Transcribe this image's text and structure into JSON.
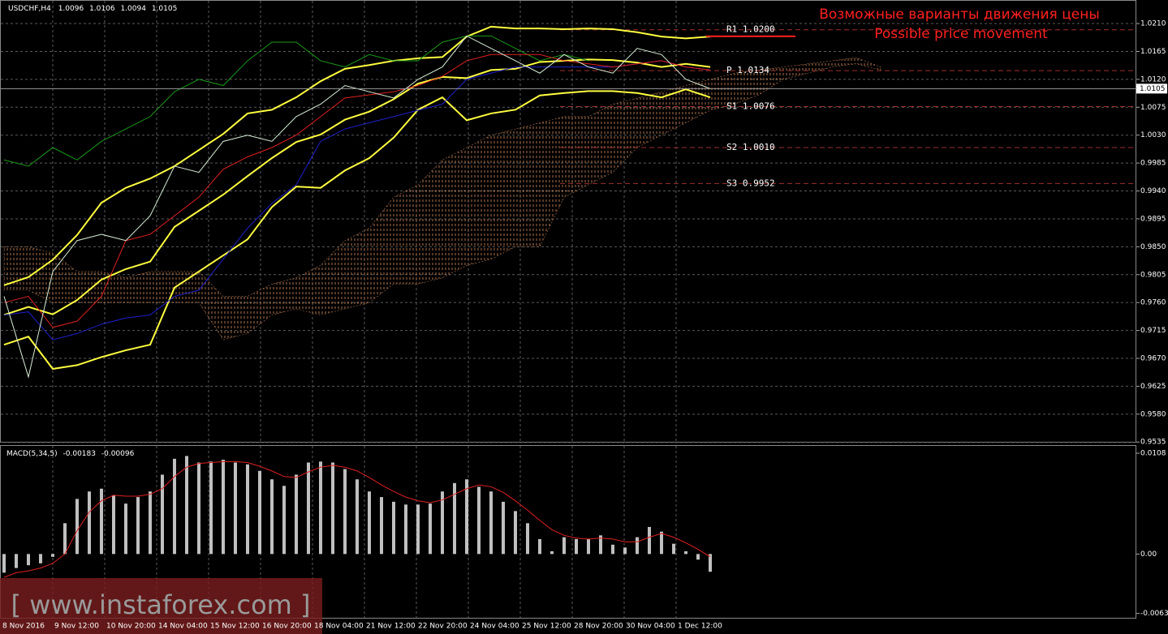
{
  "chart_data": [
    {
      "type": "line",
      "title": "USDCHF,H4",
      "ohlc": [
        1.0096,
        1.0106,
        1.0094,
        1.0105
      ],
      "annotations": [
        "Возможные варианты движения цены",
        "Possible price movement"
      ],
      "watermark": "[ www.instaforex.com ]",
      "ylim": [
        0.9534,
        1.0248
      ],
      "yticks": [
        {
          "value": 1.021,
          "label": "1.0210"
        },
        1.0165,
        {
          "value": 1.012,
          "label": "1.0120"
        },
        1.0075,
        {
          "value": 1.003,
          "label": "1.0030"
        },
        0.9985,
        {
          "value": 0.994,
          "label": "0.9940"
        },
        0.9895,
        {
          "value": 0.985,
          "label": "0.9850"
        },
        0.9805,
        {
          "value": 0.976,
          "label": "0.9760"
        },
        0.9715,
        {
          "value": 0.967,
          "label": "0.9670"
        },
        0.9625,
        {
          "value": 0.958,
          "label": "0.9580"
        },
        0.9535
      ],
      "current_price": 1.0105,
      "grid": true,
      "x_labels": [
        "8 Nov 2016",
        "9 Nov 12:00",
        "10 Nov 20:00",
        "14 Nov 04:00",
        "15 Nov 12:00",
        "16 Nov 20:00",
        "18 Nov 04:00",
        "21 Nov 12:00",
        "22 Nov 20:00",
        "24 Nov 04:00",
        "25 Nov 12:00",
        "28 Nov 20:00",
        "30 Nov 04:00",
        "1 Dec 12:00"
      ],
      "levels": [
        {
          "label": "R1 1.0200",
          "value": 1.02
        },
        {
          "label": "P 1.0134",
          "value": 1.0134
        },
        {
          "label": "S1 1.0076",
          "value": 1.0076
        },
        {
          "label": "S2 1.0010",
          "value": 1.001
        },
        {
          "label": "S3 0.9952",
          "value": 0.9952
        }
      ],
      "cloud": {
        "color": "#c8865a",
        "upper": [
          0.985,
          0.985,
          0.984,
          0.981,
          0.981,
          0.98,
          0.981,
          0.981,
          0.981,
          0.977,
          0.977,
          0.979,
          0.98,
          0.982,
          0.986,
          0.988,
          0.993,
          0.995,
          0.999,
          1.001,
          1.003,
          1.004,
          1.005,
          1.006,
          1.006,
          1.008,
          1.009,
          1.01,
          1.011,
          1.012,
          1.013,
          1.0135,
          1.014,
          1.0145,
          1.015,
          1.0155,
          1.014
        ],
        "lower": [
          0.978,
          0.978,
          0.976,
          0.976,
          0.976,
          0.976,
          0.976,
          0.976,
          0.976,
          0.97,
          0.971,
          0.974,
          0.975,
          0.974,
          0.975,
          0.976,
          0.979,
          0.979,
          0.98,
          0.982,
          0.983,
          0.985,
          0.985,
          0.993,
          0.995,
          0.997,
          1.001,
          1.003,
          1.005,
          1.007,
          1.008,
          1.0095,
          1.012,
          1.013,
          1.014,
          1.0145,
          1.0135
        ]
      },
      "series": [
        {
          "color": "#ffff40",
          "values": [
            0.9788,
            0.9801,
            0.9829,
            0.9869,
            0.9921,
            0.9945,
            0.996,
            0.998,
            1.0006,
            1.0032,
            1.0065,
            1.0071,
            1.0091,
            1.0117,
            1.0137,
            1.0143,
            1.015,
            1.0154,
            1.0156,
            1.0189,
            1.0205,
            1.0202,
            1.0202,
            1.0201,
            1.0202,
            1.0201,
            1.0196,
            1.0189,
            1.0186,
            1.0189
          ]
        },
        {
          "color": "#ffff40",
          "values": [
            0.974,
            0.9753,
            0.9741,
            0.9764,
            0.9797,
            0.9814,
            0.9826,
            0.9882,
            0.9908,
            0.9934,
            0.9964,
            0.9993,
            1.0019,
            1.0031,
            1.0055,
            1.0068,
            1.0088,
            1.0113,
            1.0124,
            1.0122,
            1.0135,
            1.0137,
            1.0148,
            1.015,
            1.0152,
            1.0151,
            1.0147,
            1.014,
            1.0145,
            1.014
          ]
        },
        {
          "color": "#ffff40",
          "values": [
            0.9692,
            0.9705,
            0.9653,
            0.9659,
            0.9672,
            0.9683,
            0.9692,
            0.9784,
            0.981,
            0.9836,
            0.9862,
            0.9914,
            0.9947,
            0.9945,
            0.9973,
            0.9993,
            1.0026,
            1.0071,
            1.0091,
            1.0054,
            1.0065,
            1.0071,
            1.0094,
            1.0098,
            1.0101,
            1.0101,
            1.0098,
            1.0091,
            1.0104,
            1.0091
          ]
        },
        {
          "color": "#1a9a1a",
          "values": [
            0.999,
            0.998,
            1.001,
            0.999,
            1.002,
            1.004,
            1.006,
            1.01,
            1.012,
            1.011,
            1.015,
            1.018,
            1.018,
            1.015,
            1.014,
            1.016,
            1.015,
            1.015,
            1.018,
            1.019,
            1.019,
            1.017,
            1.015,
            1.016,
            1.015,
            null,
            null,
            null,
            null,
            null
          ]
        },
        {
          "color": "#2020d0",
          "values": [
            0.974,
            0.9745,
            0.97,
            0.971,
            0.9725,
            0.9735,
            0.974,
            0.977,
            0.978,
            0.983,
            0.988,
            0.992,
            0.995,
            1.002,
            1.004,
            1.005,
            1.006,
            1.007,
            1.008,
            1.012,
            1.013,
            1.014,
            1.014,
            1.014,
            1.014,
            1.014,
            1.0145,
            1.015,
            1.014,
            1.0135
          ]
        },
        {
          "color": "#e02020",
          "values": [
            0.976,
            0.977,
            0.972,
            0.973,
            0.977,
            0.986,
            0.987,
            0.99,
            0.993,
            0.9975,
            0.9995,
            1.001,
            1.003,
            1.006,
            1.009,
            1.0095,
            1.01,
            1.011,
            1.0125,
            1.015,
            1.016,
            1.016,
            1.016,
            1.015,
            1.0145,
            1.014,
            1.0145,
            1.015,
            1.014,
            1.0135
          ]
        },
        {
          "color": "#d8f0d8",
          "values": [
            0.977,
            0.964,
            0.981,
            0.986,
            0.987,
            0.986,
            0.99,
            0.998,
            0.997,
            1.002,
            1.003,
            1.002,
            1.006,
            1.008,
            1.011,
            1.01,
            1.009,
            1.012,
            1.014,
            1.019,
            1.017,
            1.015,
            1.013,
            1.016,
            1.014,
            1.013,
            1.017,
            1.016,
            1.012,
            1.0105
          ]
        }
      ]
    },
    {
      "type": "bar",
      "title": "MACD(5,34,5)",
      "header_values": [
        -0.00183,
        -0.00096
      ],
      "ylim": [
        -0.00683,
        0.01158
      ],
      "yticks": [
        0.0108,
        {
          "value": 0,
          "label": "0.00"
        },
        -0.00637
      ],
      "color": "#c0c0c0",
      "values": [
        -0.002,
        -0.0015,
        -0.0012,
        -0.001,
        -0.0003,
        0.0033,
        0.0059,
        0.0067,
        0.007,
        0.0063,
        0.0054,
        0.0061,
        0.0067,
        0.0085,
        0.0102,
        0.0105,
        0.0098,
        0.0099,
        0.0101,
        0.0098,
        0.0096,
        0.0089,
        0.008,
        0.0073,
        0.0085,
        0.0098,
        0.0099,
        0.0098,
        0.0091,
        0.008,
        0.0067,
        0.0061,
        0.0056,
        0.0053,
        0.0053,
        0.0054,
        0.0067,
        0.0076,
        0.008,
        0.0072,
        0.0067,
        0.0056,
        0.0046,
        0.0033,
        0.0016,
        0.0003,
        0.0018,
        0.0016,
        0.0016,
        0.002,
        0.001,
        0.0007,
        0.0018,
        0.0029,
        0.0024,
        0.0011,
        0.0003,
        -0.0006,
        -0.0019
      ],
      "signal": {
        "color": "#e02020",
        "values": [
          -0.0025,
          -0.002,
          -0.0018,
          -0.0015,
          -0.001,
          0,
          0.0025,
          0.0045,
          0.0057,
          0.0063,
          0.0062,
          0.0062,
          0.0064,
          0.007,
          0.0083,
          0.0093,
          0.0097,
          0.0098,
          0.0099,
          0.0099,
          0.0098,
          0.0094,
          0.0089,
          0.0083,
          0.0082,
          0.0088,
          0.0093,
          0.0095,
          0.0093,
          0.0089,
          0.0082,
          0.0074,
          0.0067,
          0.0061,
          0.0057,
          0.0055,
          0.0058,
          0.0064,
          0.007,
          0.0074,
          0.0072,
          0.0066,
          0.0057,
          0.0047,
          0.0036,
          0.0026,
          0.002,
          0.0017,
          0.0016,
          0.0017,
          0.0016,
          0.0013,
          0.0013,
          0.0018,
          0.0022,
          0.0018,
          0.0012,
          0.0005,
          -0.0003
        ]
      }
    }
  ]
}
